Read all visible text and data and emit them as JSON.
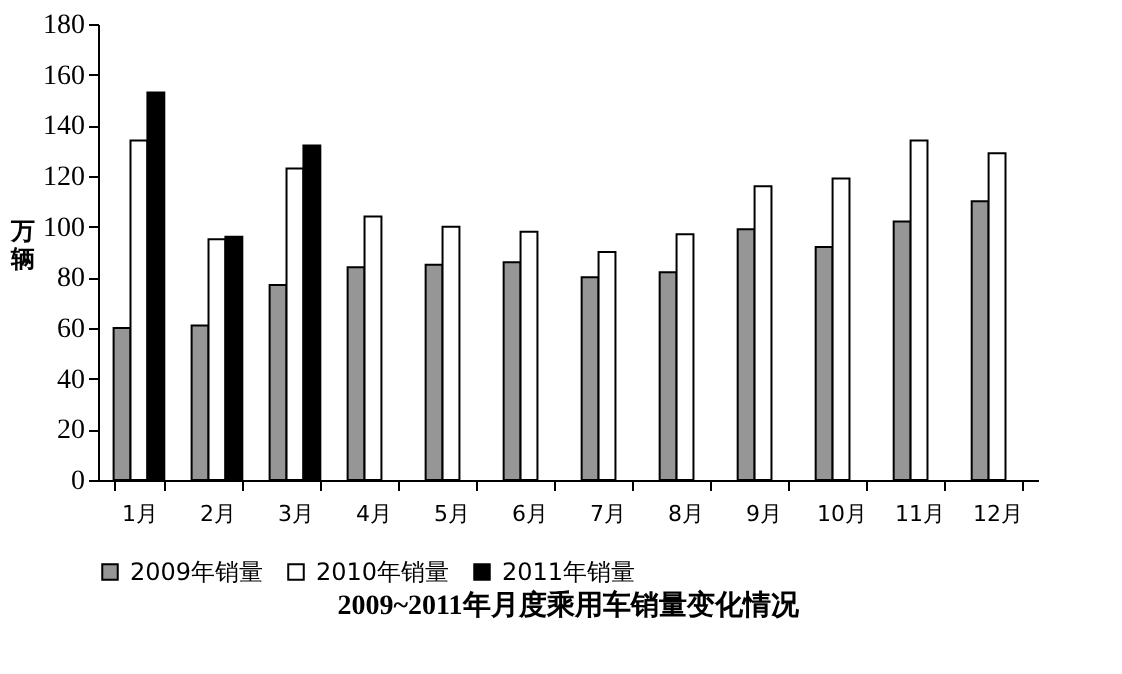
{
  "chart_data": {
    "type": "bar",
    "title": "2009~2011年月度乘用车销量变化情况",
    "ylabel": "万辆",
    "categories": [
      "1月",
      "2月",
      "3月",
      "4月",
      "5月",
      "6月",
      "7月",
      "8月",
      "9月",
      "10月",
      "11月",
      "12月"
    ],
    "series": [
      {
        "name": "2009年销量",
        "color": "#969696",
        "values": [
          60,
          61,
          77,
          84,
          85,
          86,
          80,
          82,
          99,
          92,
          102,
          110
        ]
      },
      {
        "name": "2010年销量",
        "color": "#ffffff",
        "values": [
          134,
          95,
          123,
          104,
          100,
          98,
          90,
          97,
          116,
          119,
          134,
          129
        ]
      },
      {
        "name": "2011年销量",
        "color": "#000000",
        "values": [
          153,
          96,
          132,
          null,
          null,
          null,
          null,
          null,
          null,
          null,
          null,
          null
        ]
      }
    ],
    "ylim": [
      0,
      180
    ],
    "yticks": [
      0,
      20,
      40,
      60,
      80,
      100,
      120,
      140,
      160,
      180
    ],
    "grid": false,
    "legend": "bottom"
  }
}
